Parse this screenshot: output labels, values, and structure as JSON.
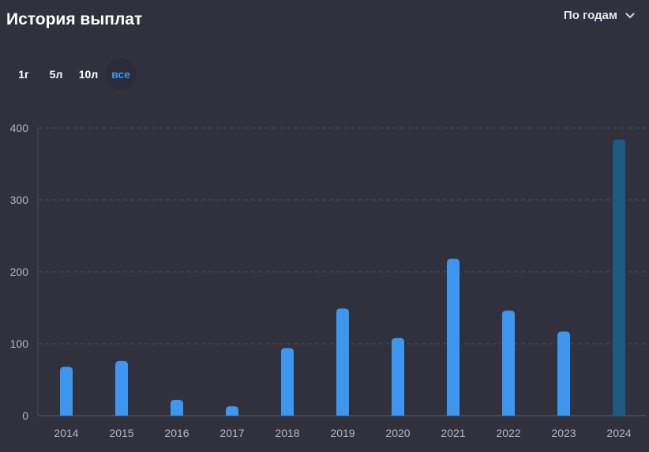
{
  "header": {
    "title": "История выплат",
    "period_select": {
      "value": "По годам",
      "icon": "chevron-down-icon"
    }
  },
  "range_tabs": [
    {
      "label": "1г",
      "active": false
    },
    {
      "label": "5л",
      "active": false
    },
    {
      "label": "10л",
      "active": false
    },
    {
      "label": "все",
      "active": true
    }
  ],
  "colors": {
    "bar": "#3d96f0",
    "bar_forecast": "#1f5a82",
    "grid": "#4d4d5a",
    "active_tab": "#3d96f0"
  },
  "chart_data": {
    "type": "bar",
    "categories": [
      "2014",
      "2015",
      "2016",
      "2017",
      "2018",
      "2019",
      "2020",
      "2021",
      "2022",
      "2023",
      "2024"
    ],
    "values": [
      68,
      76,
      22,
      13,
      94,
      149,
      108,
      218,
      146,
      117,
      384
    ],
    "highlighted": [
      false,
      false,
      false,
      false,
      false,
      false,
      false,
      false,
      false,
      false,
      true
    ],
    "ylim": [
      0,
      400
    ],
    "yticks": [
      0,
      100,
      200,
      300,
      400
    ],
    "grid": true,
    "legend": "none"
  }
}
